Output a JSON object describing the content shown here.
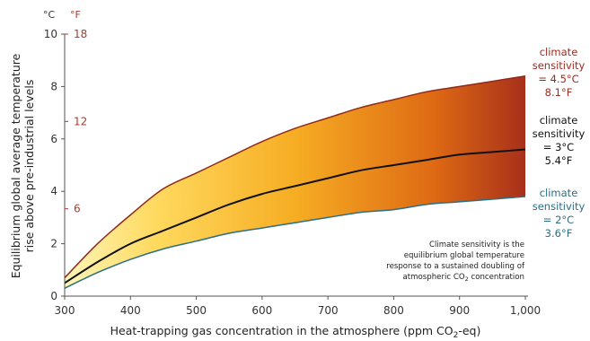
{
  "chart_data": {
    "type": "area",
    "xlabel": "Heat-trapping gas concentration in the atmosphere (ppm CO",
    "xlabel_sub": "2",
    "xlabel_tail": "-eq)",
    "ylabel_line1": "Equilibrium global average temperature",
    "ylabel_line2": "rise above pre-industrial levels",
    "unit_c": "°C",
    "unit_f": "°F",
    "xlim": [
      300,
      1000
    ],
    "ylim": [
      0,
      10
    ],
    "x_ticks": [
      300,
      400,
      500,
      600,
      700,
      800,
      900,
      1000
    ],
    "x_tick_labels": [
      "300",
      "400",
      "500",
      "600",
      "700",
      "800",
      "900",
      "1,000"
    ],
    "y_ticks_c": [
      0,
      2,
      4,
      6,
      8,
      10
    ],
    "y_ticks_f": [
      6,
      12,
      18
    ],
    "x": [
      300,
      350,
      400,
      450,
      500,
      550,
      600,
      650,
      700,
      750,
      800,
      850,
      900,
      950,
      1000
    ],
    "series": [
      {
        "name": "climate sensitivity = 4.5°C 8.1°F",
        "color": "#8f2a1a",
        "values": [
          0.7,
          2.0,
          3.1,
          4.1,
          4.7,
          5.3,
          5.9,
          6.4,
          6.8,
          7.2,
          7.5,
          7.8,
          8.0,
          8.2,
          8.4
        ]
      },
      {
        "name": "climate sensitivity = 3°C 5.4°F",
        "color": "#111111",
        "values": [
          0.5,
          1.3,
          2.0,
          2.5,
          3.0,
          3.5,
          3.9,
          4.2,
          4.5,
          4.8,
          5.0,
          5.2,
          5.4,
          5.5,
          5.6
        ]
      },
      {
        "name": "climate sensitivity = 2°C 3.6°F",
        "color": "#2b6f86",
        "values": [
          0.3,
          0.9,
          1.4,
          1.8,
          2.1,
          2.4,
          2.6,
          2.8,
          3.0,
          3.2,
          3.3,
          3.5,
          3.6,
          3.7,
          3.8
        ]
      }
    ],
    "labels": {
      "high": {
        "l1": "climate",
        "l2": "sensitivity",
        "l3": "= 4.5°C",
        "l4": "8.1°F"
      },
      "mid": {
        "l1": "climate",
        "l2": "sensitivity",
        "l3": "= 3°C",
        "l4": "5.4°F"
      },
      "low": {
        "l1": "climate",
        "l2": "sensitivity",
        "l3": "= 2°C",
        "l4": "3.6°F"
      }
    },
    "annotation": {
      "l1": "Climate sensitivity is the",
      "l2": "equilibrium global temperature",
      "l3": "response to a sustained doubling of",
      "l4a": "atmospheric CO",
      "l4sub": "2",
      "l4b": " concentration"
    },
    "grid": false,
    "legend": "right"
  }
}
